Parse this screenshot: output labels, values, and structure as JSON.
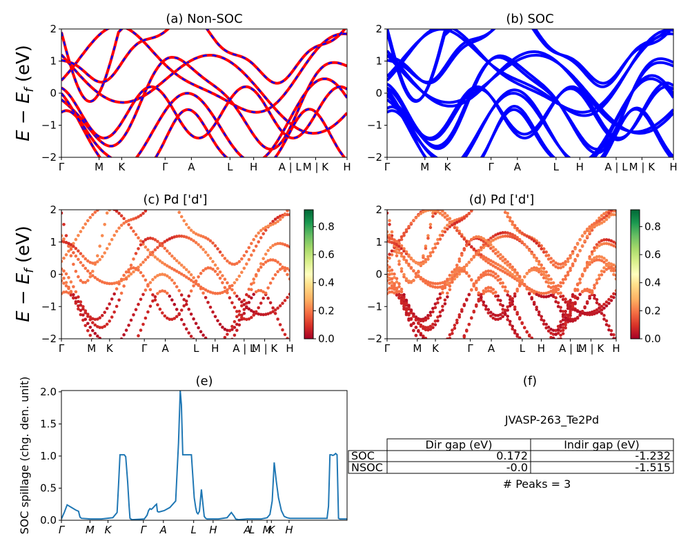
{
  "figure": {
    "ylabel_energy_main": "E − E",
    "ylabel_energy_sub": "f",
    "ylabel_energy_unit": " (eV)"
  },
  "chart_data": [
    {
      "id": "a",
      "type": "line",
      "title": "(a) Non-SOC",
      "ylim": [
        -2,
        2
      ],
      "yticks": [
        "2",
        "1",
        "0",
        "−1",
        "−2"
      ],
      "xticks": [
        "Γ",
        "M",
        "K",
        "Γ",
        "A",
        "L",
        "H",
        "A | L",
        "M | K",
        "H"
      ],
      "xtick_pos": [
        0.0,
        0.132,
        0.211,
        0.363,
        0.455,
        0.59,
        0.673,
        0.8,
        0.89,
        1.0
      ],
      "series": [
        {
          "color": "#ff0000",
          "dashcolor": "#0000ff",
          "kind": "non-soc"
        }
      ]
    },
    {
      "id": "b",
      "type": "line",
      "title": "(b) SOC",
      "ylim": [
        -2,
        2
      ],
      "yticks": [
        "2",
        "1",
        "0",
        "−1",
        "−2"
      ],
      "xticks": [
        "Γ",
        "M",
        "K",
        "Γ",
        "A",
        "L",
        "H",
        "A | L",
        "M | K",
        "H"
      ],
      "xtick_pos": [
        0.0,
        0.132,
        0.211,
        0.363,
        0.455,
        0.59,
        0.673,
        0.8,
        0.89,
        1.0
      ],
      "series": [
        {
          "color": "#0000ff",
          "kind": "soc"
        }
      ]
    },
    {
      "id": "c",
      "type": "scatter",
      "title": "(c)  Pd ['d']",
      "ylim": [
        -2,
        2
      ],
      "yticks": [
        "2",
        "1",
        "0",
        "−1",
        "−2"
      ],
      "xticks": [
        "Γ",
        "M",
        "K",
        "Γ",
        "A",
        "L",
        "H",
        "A | L",
        "M | K",
        "H"
      ],
      "xtick_pos": [
        0.0,
        0.132,
        0.211,
        0.363,
        0.455,
        0.59,
        0.673,
        0.8,
        0.89,
        1.0
      ],
      "colorbar_ticks": [
        "0.8",
        "0.6",
        "0.4",
        "0.2",
        "0.0"
      ],
      "colorbar_range": [
        0,
        0.92
      ]
    },
    {
      "id": "d",
      "type": "scatter",
      "title": "(d) Pd ['d']",
      "ylim": [
        -2,
        2
      ],
      "yticks": [
        "2",
        "1",
        "0",
        "−1",
        "−2"
      ],
      "xticks": [
        "Γ",
        "M",
        "K",
        "Γ",
        "A",
        "L",
        "H",
        "A | L",
        "M | K",
        "H"
      ],
      "xtick_pos": [
        0.0,
        0.132,
        0.211,
        0.363,
        0.455,
        0.59,
        0.673,
        0.8,
        0.89,
        1.0
      ],
      "colorbar_ticks": [
        "0.8",
        "0.6",
        "0.4",
        "0.2",
        "0.0"
      ],
      "colorbar_range": [
        0,
        0.92
      ]
    },
    {
      "id": "e",
      "type": "line",
      "title": "(e)",
      "ylabel": "SOC spillage (chg. den. unit)",
      "ylim": [
        0,
        2.02
      ],
      "yticks": [
        "2.0",
        "1.5",
        "1.0",
        "0.5",
        "0.0"
      ],
      "ytick_vals": [
        2.0,
        1.5,
        1.0,
        0.5,
        0.0
      ],
      "xticks": [
        "Γ",
        "M",
        "K",
        "Γ",
        "A",
        "L",
        "H",
        "A",
        "L",
        "M",
        "K",
        "H"
      ],
      "xtick_pos": [
        0.0,
        0.1,
        0.163,
        0.287,
        0.357,
        0.463,
        0.531,
        0.651,
        0.667,
        0.72,
        0.735,
        0.797
      ],
      "color": "#1f77b4",
      "x": [
        0.0,
        0.01,
        0.02,
        0.035,
        0.05,
        0.06,
        0.065,
        0.07,
        0.1,
        0.14,
        0.18,
        0.195,
        0.2,
        0.205,
        0.215,
        0.22,
        0.225,
        0.232,
        0.237,
        0.24,
        0.243,
        0.248,
        0.29,
        0.3,
        0.305,
        0.31,
        0.315,
        0.32,
        0.328,
        0.333,
        0.336,
        0.339,
        0.343,
        0.36,
        0.38,
        0.4,
        0.41,
        0.416,
        0.42,
        0.425,
        0.43,
        0.438,
        0.445,
        0.455,
        0.465,
        0.47,
        0.474,
        0.478,
        0.483,
        0.49,
        0.497,
        0.5,
        0.505,
        0.51,
        0.55,
        0.58,
        0.595,
        0.605,
        0.61,
        0.62,
        0.65,
        0.7,
        0.72,
        0.73,
        0.738,
        0.745,
        0.752,
        0.76,
        0.77,
        0.78,
        0.79,
        0.8,
        0.88,
        0.93,
        0.935,
        0.94,
        0.945,
        0.95,
        0.955,
        0.96,
        0.965,
        0.97,
        0.975,
        0.98,
        0.99,
        1.0
      ],
      "y": [
        0.02,
        0.12,
        0.24,
        0.2,
        0.16,
        0.14,
        0.05,
        0.03,
        0.02,
        0.02,
        0.04,
        0.12,
        0.55,
        1.02,
        1.02,
        1.02,
        0.99,
        0.6,
        0.22,
        0.03,
        0.02,
        0.01,
        0.02,
        0.08,
        0.15,
        0.18,
        0.17,
        0.19,
        0.23,
        0.25,
        0.14,
        0.13,
        0.13,
        0.15,
        0.2,
        0.3,
        1.2,
        2.02,
        1.8,
        1.02,
        1.02,
        1.02,
        1.02,
        1.02,
        0.35,
        0.2,
        0.12,
        0.1,
        0.14,
        0.48,
        0.18,
        0.06,
        0.03,
        0.02,
        0.02,
        0.04,
        0.12,
        0.06,
        0.02,
        0.01,
        0.02,
        0.02,
        0.04,
        0.09,
        0.3,
        0.9,
        0.62,
        0.35,
        0.15,
        0.06,
        0.04,
        0.03,
        0.03,
        0.03,
        0.22,
        1.02,
        1.02,
        1.01,
        1.02,
        1.04,
        1.02,
        0.03,
        0.02,
        0.02,
        0.02,
        0.02
      ]
    },
    {
      "id": "f",
      "type": "table",
      "title": "(f)",
      "material": "JVASP-263_Te2Pd",
      "columns": [
        "Dir gap (eV)",
        "Indir gap (eV)"
      ],
      "rows": [
        {
          "label": "SOC",
          "dir": "0.172",
          "indir": "-1.232"
        },
        {
          "label": "NSOC",
          "dir": "-0.0",
          "indir": "-1.515"
        }
      ],
      "peaks_text": "# Peaks = 3"
    }
  ]
}
